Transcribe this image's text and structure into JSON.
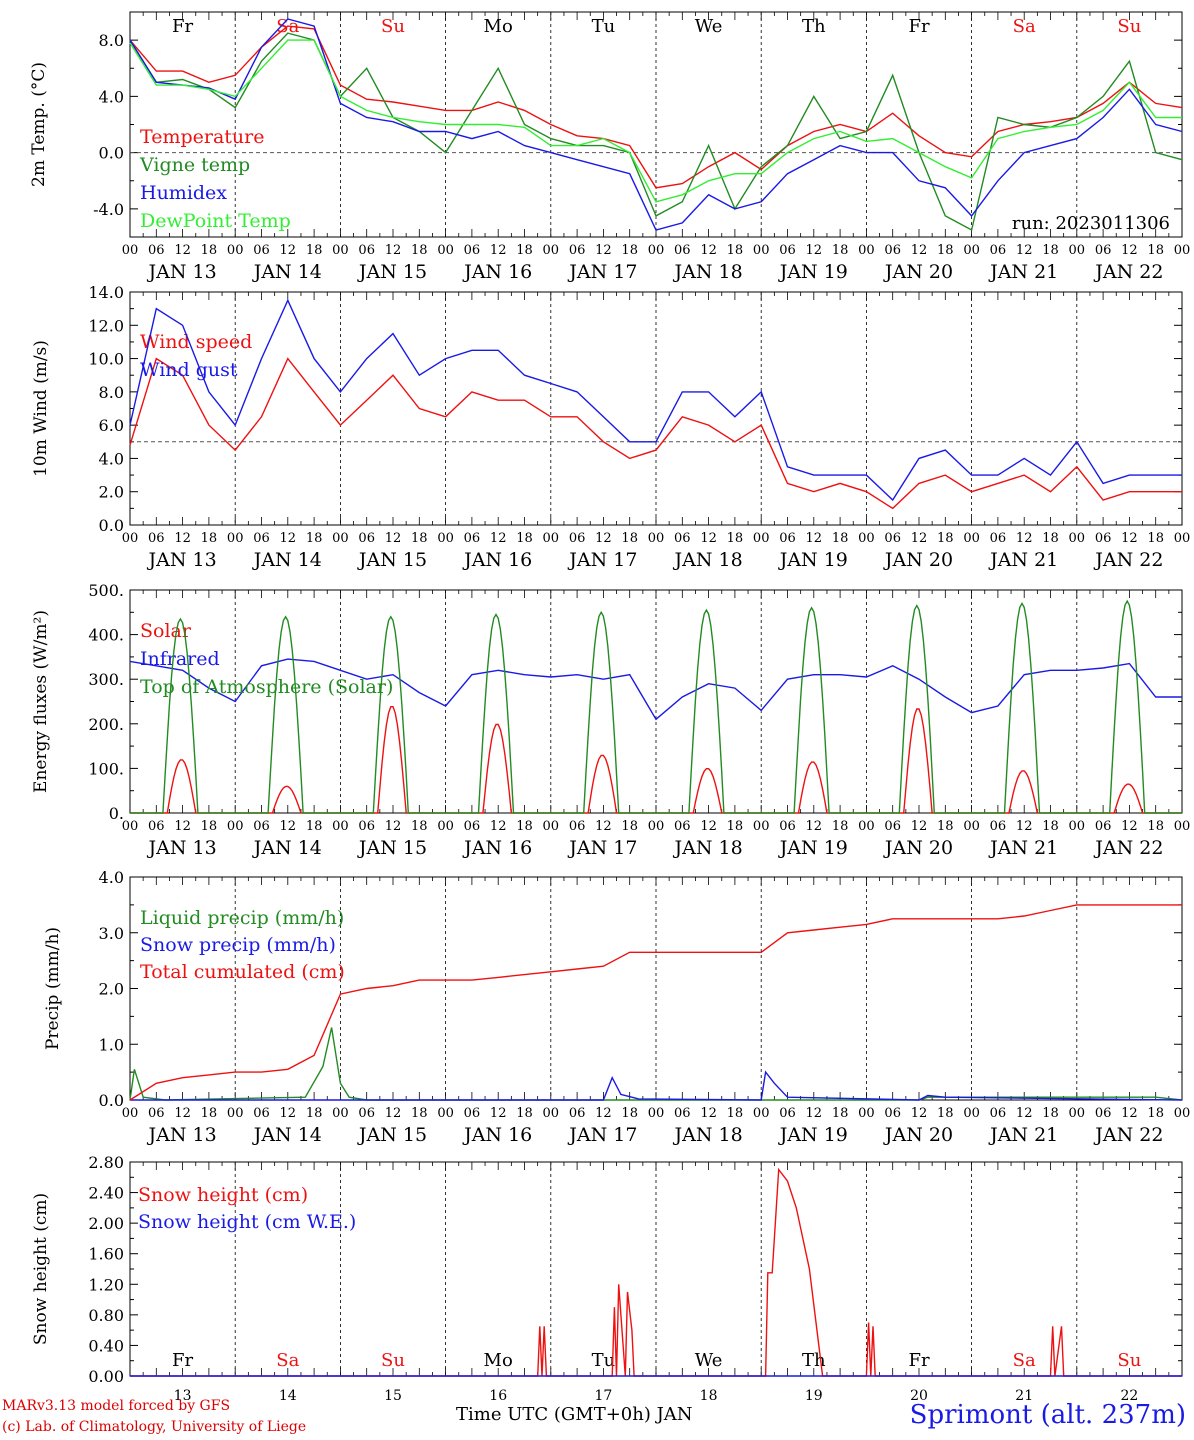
{
  "days": {
    "weekday_labels": [
      "Fr",
      "Sa",
      "Su",
      "Mo",
      "Tu",
      "We",
      "Th",
      "Fr",
      "Sa",
      "Su"
    ],
    "weekend_flags": [
      false,
      true,
      true,
      false,
      false,
      false,
      false,
      false,
      true,
      true
    ],
    "date_labels": [
      "JAN 13",
      "JAN 14",
      "JAN 15",
      "JAN 16",
      "JAN 17",
      "JAN 18",
      "JAN 19",
      "JAN 20",
      "JAN 21",
      "JAN 22"
    ],
    "day_numbers": [
      "13",
      "14",
      "15",
      "16",
      "17",
      "18",
      "19",
      "20",
      "21",
      "22"
    ],
    "hour_ticks": [
      "00",
      "06",
      "12",
      "18"
    ],
    "final_tick": "00"
  },
  "colors": {
    "red": "#ee1111",
    "green": "#228b22",
    "blue": "#1a1ae6",
    "lightgreen": "#33ee33",
    "weekday": "#000000",
    "weekend": "#ee1111"
  },
  "chart_data": [
    {
      "type": "line",
      "ylabel": "2m Temp. (°C)",
      "ylim": [
        -6,
        10
      ],
      "yticks": [
        "-4.0",
        "0.0",
        "4.0",
        "8.0"
      ],
      "ytick_values": [
        -4,
        0,
        4,
        8
      ],
      "reference_line": 0,
      "annotation": "run: 2023011306",
      "x_hours": [
        0,
        6,
        12,
        18,
        24,
        30,
        36,
        42,
        48,
        54,
        60,
        66,
        72,
        78,
        84,
        90,
        96,
        102,
        108,
        114,
        120,
        126,
        132,
        138,
        144,
        150,
        156,
        162,
        168,
        174,
        180,
        186,
        192,
        198,
        204,
        210,
        216,
        222,
        228,
        234,
        240
      ],
      "series": [
        {
          "name": "Temperature",
          "color": "red",
          "values": [
            8.0,
            5.8,
            5.8,
            5.0,
            5.5,
            7.5,
            9.0,
            8.8,
            4.8,
            3.8,
            3.6,
            3.3,
            3.0,
            3.0,
            3.6,
            3.0,
            2.0,
            1.2,
            1.0,
            0.5,
            -2.5,
            -2.2,
            -1.0,
            0.0,
            -1.2,
            0.5,
            1.5,
            2.0,
            1.5,
            2.8,
            1.2,
            0.0,
            -0.3,
            1.5,
            2.0,
            2.2,
            2.5,
            3.5,
            5.0,
            3.5,
            3.2
          ]
        },
        {
          "name": "Vigne temp",
          "color": "green",
          "values": [
            8.0,
            5.0,
            5.2,
            4.5,
            3.2,
            6.5,
            8.5,
            8.0,
            4.0,
            6.0,
            2.5,
            1.5,
            0.0,
            3.0,
            6.0,
            2.0,
            1.0,
            0.5,
            0.5,
            0.0,
            -4.5,
            -3.5,
            0.5,
            -4.0,
            -1.0,
            0.5,
            4.0,
            1.0,
            1.5,
            5.5,
            0.0,
            -4.5,
            -5.5,
            2.5,
            2.0,
            1.8,
            2.5,
            4.0,
            6.5,
            0.0,
            -0.5
          ]
        },
        {
          "name": "Humidex",
          "color": "blue",
          "values": [
            8.0,
            5.0,
            4.8,
            4.6,
            3.8,
            7.5,
            9.5,
            9.0,
            3.5,
            2.5,
            2.2,
            1.5,
            1.5,
            1.0,
            1.5,
            0.5,
            0.0,
            -0.5,
            -1.0,
            -1.5,
            -5.5,
            -5.0,
            -3.0,
            -4.0,
            -3.5,
            -1.5,
            -0.5,
            0.5,
            0.0,
            0.0,
            -2.0,
            -2.5,
            -4.5,
            -2.0,
            0.0,
            0.5,
            1.0,
            2.5,
            4.5,
            2.0,
            1.5
          ]
        },
        {
          "name": "DewPoint Temp",
          "color": "lightgreen",
          "values": [
            7.8,
            4.8,
            4.8,
            4.5,
            4.0,
            6.0,
            8.0,
            8.0,
            4.0,
            3.0,
            2.5,
            2.2,
            2.0,
            2.0,
            2.0,
            1.8,
            0.5,
            0.5,
            1.0,
            0.0,
            -3.5,
            -3.0,
            -2.0,
            -1.5,
            -1.5,
            0.0,
            1.0,
            1.5,
            0.8,
            1.0,
            0.0,
            -1.0,
            -1.8,
            1.0,
            1.5,
            1.8,
            2.0,
            3.0,
            5.0,
            2.5,
            2.5
          ]
        }
      ]
    },
    {
      "type": "line",
      "ylabel": "10m Wind (m/s)",
      "ylim": [
        0,
        14
      ],
      "yticks": [
        "0.0",
        "2.0",
        "4.0",
        "6.0",
        "8.0",
        "10.0",
        "12.0",
        "14.0"
      ],
      "ytick_values": [
        0,
        2,
        4,
        6,
        8,
        10,
        12,
        14
      ],
      "reference_line": 5,
      "x_hours": [
        0,
        6,
        12,
        18,
        24,
        30,
        36,
        42,
        48,
        54,
        60,
        66,
        72,
        78,
        84,
        90,
        96,
        102,
        108,
        114,
        120,
        126,
        132,
        138,
        144,
        150,
        156,
        162,
        168,
        174,
        180,
        186,
        192,
        198,
        204,
        210,
        216,
        222,
        228,
        234,
        240
      ],
      "series": [
        {
          "name": "Wind speed",
          "color": "red",
          "values": [
            4.8,
            10.0,
            9.0,
            6.0,
            4.5,
            6.5,
            10.0,
            8.0,
            6.0,
            7.5,
            9.0,
            7.0,
            6.5,
            8.0,
            7.5,
            7.5,
            6.5,
            6.5,
            5.0,
            4.0,
            4.5,
            6.5,
            6.0,
            5.0,
            6.0,
            2.5,
            2.0,
            2.5,
            2.0,
            1.0,
            2.5,
            3.0,
            2.0,
            2.5,
            3.0,
            2.0,
            3.5,
            1.5,
            2.0,
            2.0,
            2.0
          ]
        },
        {
          "name": "Wind gust",
          "color": "blue",
          "values": [
            6.0,
            13.0,
            12.0,
            8.0,
            6.0,
            10.0,
            13.5,
            10.0,
            8.0,
            10.0,
            11.5,
            9.0,
            10.0,
            10.5,
            10.5,
            9.0,
            8.5,
            8.0,
            6.5,
            5.0,
            5.0,
            8.0,
            8.0,
            6.5,
            8.0,
            3.5,
            3.0,
            3.0,
            3.0,
            1.5,
            4.0,
            4.5,
            3.0,
            3.0,
            4.0,
            3.0,
            5.0,
            2.5,
            3.0,
            3.0,
            3.0
          ]
        }
      ]
    },
    {
      "type": "line",
      "ylabel": "Energy fluxes (W/m²)",
      "ylim": [
        0,
        500
      ],
      "yticks": [
        "0.",
        "100.",
        "200.",
        "300.",
        "400.",
        "500."
      ],
      "ytick_values": [
        0,
        100,
        200,
        300,
        400,
        500
      ],
      "series": [
        {
          "name": "Solar",
          "color": "red",
          "daily_peaks": [
            120,
            60,
            240,
            200,
            130,
            100,
            115,
            235,
            95,
            65
          ]
        },
        {
          "name": "Infrared",
          "color": "blue",
          "x_hours": [
            0,
            6,
            12,
            18,
            24,
            30,
            36,
            42,
            48,
            54,
            60,
            66,
            72,
            78,
            84,
            90,
            96,
            102,
            108,
            114,
            120,
            126,
            132,
            138,
            144,
            150,
            156,
            162,
            168,
            174,
            180,
            186,
            192,
            198,
            204,
            210,
            216,
            222,
            228,
            234,
            240
          ],
          "values": [
            340,
            330,
            320,
            280,
            250,
            330,
            345,
            340,
            320,
            300,
            310,
            270,
            240,
            310,
            320,
            310,
            305,
            310,
            300,
            310,
            210,
            260,
            290,
            280,
            230,
            300,
            310,
            310,
            305,
            330,
            300,
            260,
            225,
            240,
            310,
            320,
            320,
            325,
            335,
            260,
            260
          ]
        },
        {
          "name": "Top of Atmosphere (Solar)",
          "color": "green",
          "daily_peaks": [
            435,
            440,
            440,
            445,
            450,
            455,
            460,
            465,
            470,
            475
          ]
        }
      ]
    },
    {
      "type": "line",
      "ylabel": "Precip (mm/h)",
      "ylim": [
        0,
        4
      ],
      "yticks": [
        "0.0",
        "1.0",
        "2.0",
        "3.0",
        "4.0"
      ],
      "ytick_values": [
        0,
        1,
        2,
        3,
        4
      ],
      "series": [
        {
          "name": "Liquid precip (mm/h)",
          "color": "green",
          "points": [
            [
              0,
              0
            ],
            [
              1,
              0.55
            ],
            [
              3,
              0.05
            ],
            [
              8,
              0.0
            ],
            [
              40,
              0.05
            ],
            [
              44,
              0.6
            ],
            [
              46,
              1.3
            ],
            [
              48,
              0.3
            ],
            [
              50,
              0.05
            ],
            [
              54,
              0.0
            ],
            [
              180,
              0.0
            ],
            [
              182,
              0.05
            ],
            [
              234,
              0.05
            ],
            [
              240,
              0.0
            ]
          ]
        },
        {
          "name": "Snow precip (mm/h)",
          "color": "blue",
          "points": [
            [
              0,
              0
            ],
            [
              108,
              0
            ],
            [
              110,
              0.4
            ],
            [
              112,
              0.1
            ],
            [
              116,
              0.02
            ],
            [
              144,
              0.0
            ],
            [
              145,
              0.5
            ],
            [
              147,
              0.3
            ],
            [
              150,
              0.05
            ],
            [
              180,
              0.0
            ],
            [
              182,
              0.08
            ],
            [
              186,
              0.05
            ],
            [
              240,
              0.0
            ]
          ]
        },
        {
          "name": "Total cumulated (cm)",
          "color": "red",
          "x_hours": [
            0,
            6,
            12,
            18,
            24,
            30,
            36,
            42,
            48,
            54,
            60,
            66,
            72,
            78,
            84,
            90,
            96,
            102,
            108,
            114,
            120,
            126,
            132,
            138,
            144,
            150,
            156,
            162,
            168,
            174,
            180,
            186,
            192,
            198,
            204,
            210,
            216,
            222,
            228,
            234,
            240
          ],
          "values": [
            0.0,
            0.3,
            0.4,
            0.45,
            0.5,
            0.5,
            0.55,
            0.8,
            1.9,
            2.0,
            2.05,
            2.15,
            2.15,
            2.15,
            2.2,
            2.25,
            2.3,
            2.35,
            2.4,
            2.65,
            2.65,
            2.65,
            2.65,
            2.65,
            2.65,
            3.0,
            3.05,
            3.1,
            3.15,
            3.25,
            3.25,
            3.25,
            3.25,
            3.25,
            3.3,
            3.4,
            3.5,
            3.5,
            3.5,
            3.5,
            3.5
          ]
        }
      ]
    },
    {
      "type": "line",
      "ylabel": "Snow height (cm)",
      "ylim": [
        0,
        2.8
      ],
      "yticks": [
        "0.00",
        "0.40",
        "0.80",
        "1.20",
        "1.60",
        "2.00",
        "2.40",
        "2.80"
      ],
      "ytick_values": [
        0,
        0.4,
        0.8,
        1.2,
        1.6,
        2.0,
        2.4,
        2.8
      ],
      "series": [
        {
          "name": "Snow height (cm)",
          "color": "red",
          "points": [
            [
              0,
              0
            ],
            [
              93,
              0
            ],
            [
              93.5,
              0.65
            ],
            [
              94,
              0
            ],
            [
              94.5,
              0.65
            ],
            [
              95,
              0
            ],
            [
              110,
              0
            ],
            [
              110.5,
              0.9
            ],
            [
              111,
              0
            ],
            [
              111.5,
              1.2
            ],
            [
              112,
              0.8
            ],
            [
              113,
              0
            ],
            [
              113.5,
              1.1
            ],
            [
              114.5,
              0.6
            ],
            [
              115,
              0
            ],
            [
              145,
              0
            ],
            [
              145.5,
              1.35
            ],
            [
              146.5,
              1.35
            ],
            [
              148,
              2.7
            ],
            [
              150,
              2.55
            ],
            [
              152,
              2.2
            ],
            [
              155,
              1.4
            ],
            [
              158,
              0
            ],
            [
              168,
              0
            ],
            [
              168.5,
              0.7
            ],
            [
              169,
              0
            ],
            [
              169.5,
              0.65
            ],
            [
              170,
              0
            ],
            [
              210,
              0
            ],
            [
              210.5,
              0.65
            ],
            [
              211,
              0
            ],
            [
              212.5,
              0.65
            ],
            [
              213,
              0
            ],
            [
              240,
              0
            ]
          ]
        },
        {
          "name": "Snow height (cm W.E.)",
          "color": "blue",
          "points": [
            [
              0,
              0
            ],
            [
              240,
              0
            ]
          ]
        }
      ]
    }
  ],
  "footer": {
    "model_line": "MARv3.13 model forced by GFS",
    "credit_line": "(c) Lab. of Climatology, University of Liege",
    "time_axis": "Time UTC (GMT+0h) JAN",
    "station": "Sprimont (alt. 237m)"
  }
}
